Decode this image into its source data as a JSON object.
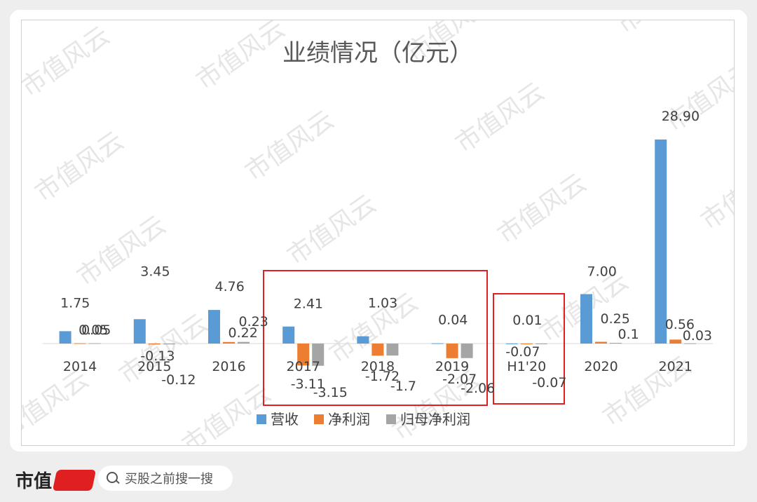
{
  "chart_data": {
    "type": "bar",
    "title": "业绩情况（亿元）",
    "categories": [
      "2014",
      "2015",
      "2016",
      "2017",
      "2018",
      "2019",
      "H1'20",
      "2020",
      "2021"
    ],
    "series": [
      {
        "name": "营收",
        "color": "#5b9bd5",
        "values": [
          1.75,
          3.45,
          4.76,
          2.41,
          1.03,
          0.04,
          0.01,
          7.0,
          28.9
        ],
        "labels": [
          "1.75",
          "3.45",
          "4.76",
          "2.41",
          "1.03",
          "0.04",
          "0.01",
          "7.00",
          "28.90"
        ]
      },
      {
        "name": "净利润",
        "color": "#ed7d31",
        "values": [
          0.05,
          -0.13,
          0.22,
          -3.11,
          -1.72,
          -2.07,
          -0.07,
          0.25,
          0.56
        ],
        "labels": [
          "0.05",
          "-0.13",
          "0.22",
          "-3.11",
          "-1.72",
          "-2.07",
          "-0.07",
          "0.25",
          "0.56"
        ]
      },
      {
        "name": "归母净利润",
        "color": "#a5a5a5",
        "values": [
          0.05,
          -0.12,
          0.23,
          -3.15,
          -1.7,
          -2.06,
          -0.07,
          0.1,
          0.03
        ],
        "labels": [
          "0.05",
          "-0.12",
          "0.23",
          "-3.15",
          "-1.7",
          "-2.06",
          "-0.07",
          "0.1",
          "0.03"
        ]
      }
    ],
    "legend_position": "bottom",
    "highlight_color": "#e02020",
    "grid": false
  },
  "watermark": "市值风云",
  "footer": {
    "brand": "市值",
    "search_placeholder": "买股之前搜一搜"
  }
}
